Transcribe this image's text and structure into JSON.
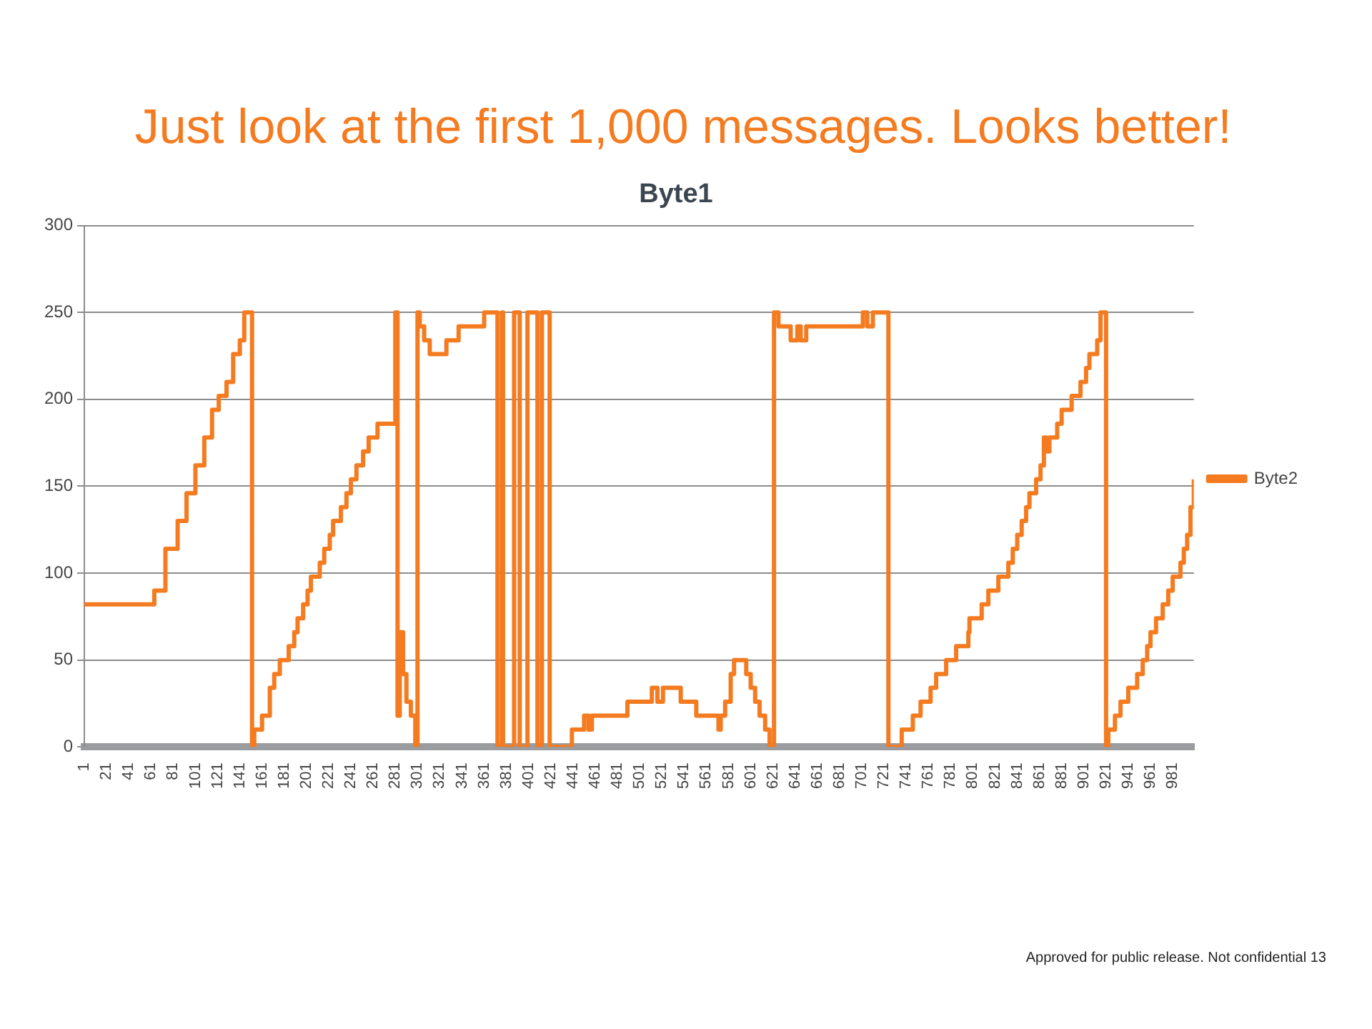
{
  "chart_data": {
    "type": "step",
    "title": "Just look at the first 1,000 messages. Looks better!",
    "subtitle": "Byte1",
    "xlim": [
      1,
      1000
    ],
    "xticks": [
      1,
      21,
      41,
      61,
      81,
      101,
      121,
      141,
      161,
      181,
      201,
      221,
      241,
      261,
      281,
      301,
      321,
      341,
      361,
      381,
      401,
      421,
      441,
      461,
      481,
      501,
      521,
      541,
      561,
      581,
      601,
      621,
      641,
      661,
      681,
      701,
      721,
      741,
      761,
      781,
      801,
      821,
      841,
      861,
      881,
      901,
      921,
      941,
      961,
      981
    ],
    "ylim": [
      0,
      300
    ],
    "yticks": [
      0,
      50,
      100,
      150,
      200,
      250,
      300
    ],
    "grid": "y",
    "legend": "right",
    "annotations": [
      "Approved for public release. Not confidential 13"
    ],
    "series": [
      {
        "name": "Byte2",
        "color": "#f47b20",
        "x": [
          1,
          64,
          74,
          85,
          93,
          101,
          109,
          116,
          122,
          129,
          135,
          141,
          145,
          152,
          154,
          161,
          168,
          172,
          177,
          185,
          190,
          193,
          198,
          202,
          205,
          213,
          217,
          222,
          225,
          232,
          237,
          241,
          246,
          252,
          257,
          265,
          281,
          283,
          285,
          288,
          291,
          295,
          299,
          301,
          303,
          307,
          312,
          314,
          327,
          338,
          361,
          373,
          377,
          378,
          388,
          393,
          400,
          409,
          413,
          420,
          440,
          451,
          455,
          458,
          490,
          512,
          517,
          522,
          538,
          552,
          572,
          574,
          578,
          583,
          586,
          597,
          601,
          605,
          609,
          614,
          618,
          622,
          626,
          637,
          643,
          646,
          651,
          702,
          706,
          711,
          725,
          737,
          747,
          754,
          763,
          768,
          777,
          786,
          797,
          798,
          809,
          815,
          824,
          833,
          837,
          841,
          845,
          849,
          852,
          858,
          862,
          865,
          867,
          870,
          877,
          881,
          890,
          898,
          903,
          906,
          913,
          916,
          921,
          923,
          929,
          934,
          941,
          949,
          954,
          958,
          961,
          966,
          972,
          977,
          981,
          988,
          991,
          994,
          997,
          1000
        ],
        "values": [
          82,
          90,
          114,
          130,
          146,
          162,
          178,
          194,
          202,
          210,
          226,
          234,
          250,
          0,
          10,
          18,
          34,
          42,
          50,
          58,
          66,
          74,
          82,
          90,
          98,
          106,
          114,
          122,
          130,
          138,
          146,
          154,
          162,
          170,
          178,
          186,
          250,
          18,
          66,
          42,
          26,
          18,
          0,
          250,
          242,
          234,
          226,
          226,
          234,
          242,
          250,
          0,
          250,
          0,
          250,
          0,
          250,
          0,
          250,
          0,
          10,
          18,
          10,
          18,
          26,
          34,
          26,
          34,
          26,
          18,
          10,
          18,
          26,
          42,
          50,
          42,
          34,
          26,
          18,
          10,
          0,
          250,
          242,
          234,
          242,
          234,
          242,
          250,
          242,
          250,
          0,
          10,
          18,
          26,
          34,
          42,
          50,
          58,
          66,
          74,
          82,
          90,
          98,
          106,
          114,
          122,
          130,
          138,
          146,
          154,
          162,
          178,
          170,
          178,
          186,
          194,
          202,
          210,
          218,
          226,
          234,
          250,
          0,
          10,
          18,
          26,
          34,
          42,
          50,
          58,
          66,
          74,
          82,
          90,
          98,
          106,
          114,
          122,
          138,
          154
        ]
      }
    ]
  }
}
